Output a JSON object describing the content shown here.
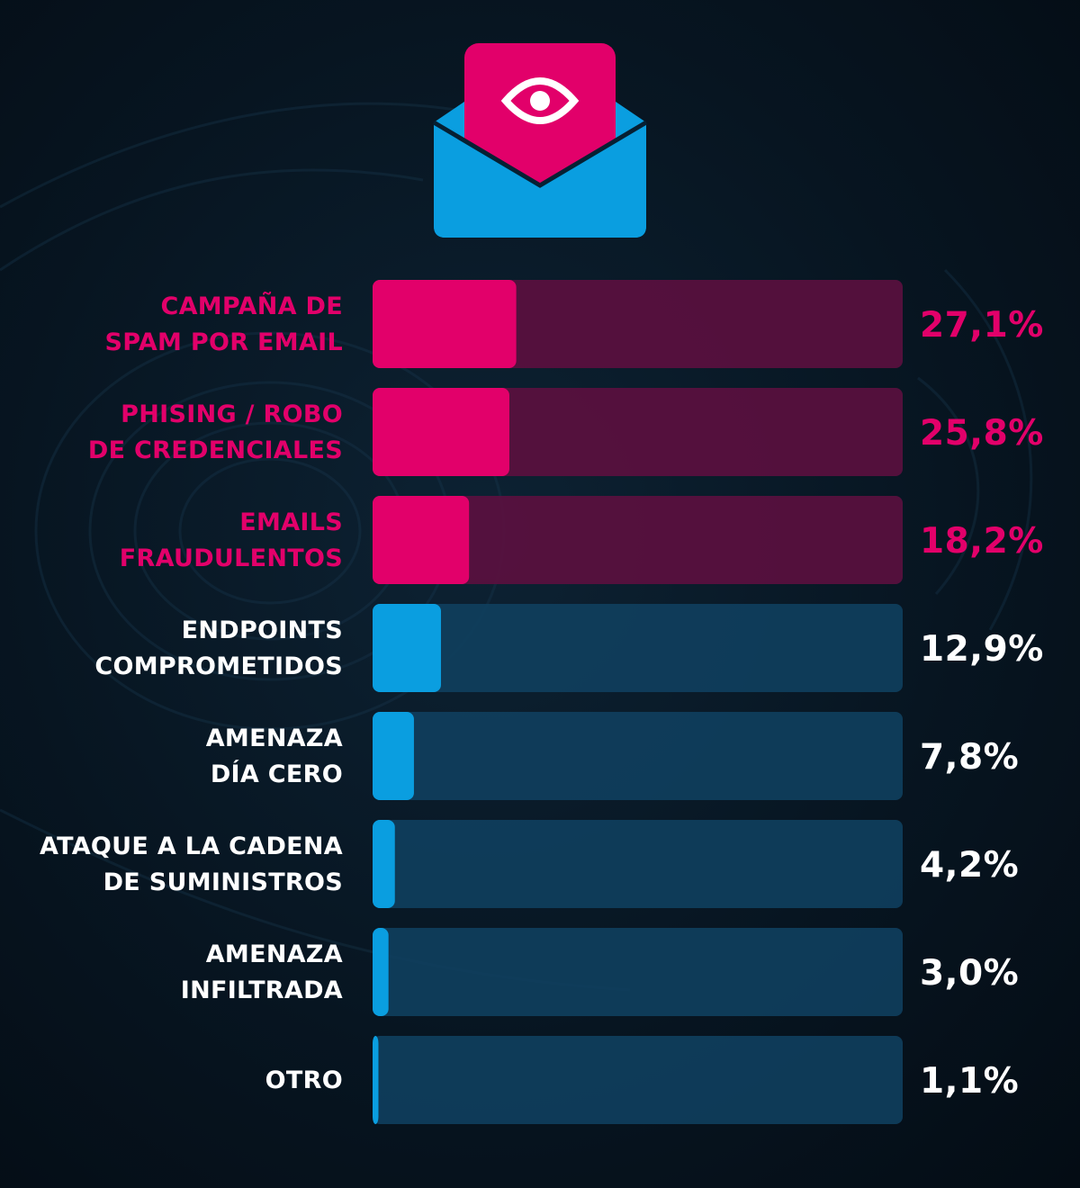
{
  "colors": {
    "pink": "#e2006a",
    "pink_track": "#5c0f3f",
    "blue": "#0a9ee0",
    "blue_track": "#0f3f5e",
    "white_text": "#ffffff",
    "background": "#071521"
  },
  "header_icon": "email-eye-icon",
  "chart_data": {
    "type": "bar",
    "orientation": "horizontal",
    "xlim": [
      0,
      100
    ],
    "grid": false,
    "categories": [
      [
        "CAMPAÑA DE",
        "SPAM POR EMAIL"
      ],
      [
        "PHISING / ROBO",
        "DE CREDENCIALES"
      ],
      [
        "EMAILS",
        "FRAUDULENTOS"
      ],
      [
        "ENDPOINTS",
        "COMPROMETIDOS"
      ],
      [
        "AMENAZA",
        "DÍA CERO"
      ],
      [
        "ATAQUE A LA CADENA",
        "DE SUMINISTROS"
      ],
      [
        "AMENAZA",
        "INFILTRADA"
      ],
      [
        "OTRO"
      ]
    ],
    "values": [
      27.1,
      25.8,
      18.2,
      12.9,
      7.8,
      4.2,
      3.0,
      1.1
    ],
    "value_labels": [
      "27,1%",
      "25,8%",
      "18,2%",
      "12,9%",
      "7,8%",
      "4,2%",
      "3,0%",
      "1,1%"
    ],
    "highlight_groups": [
      "pink",
      "pink",
      "pink",
      "blue",
      "blue",
      "blue",
      "blue",
      "blue"
    ]
  }
}
